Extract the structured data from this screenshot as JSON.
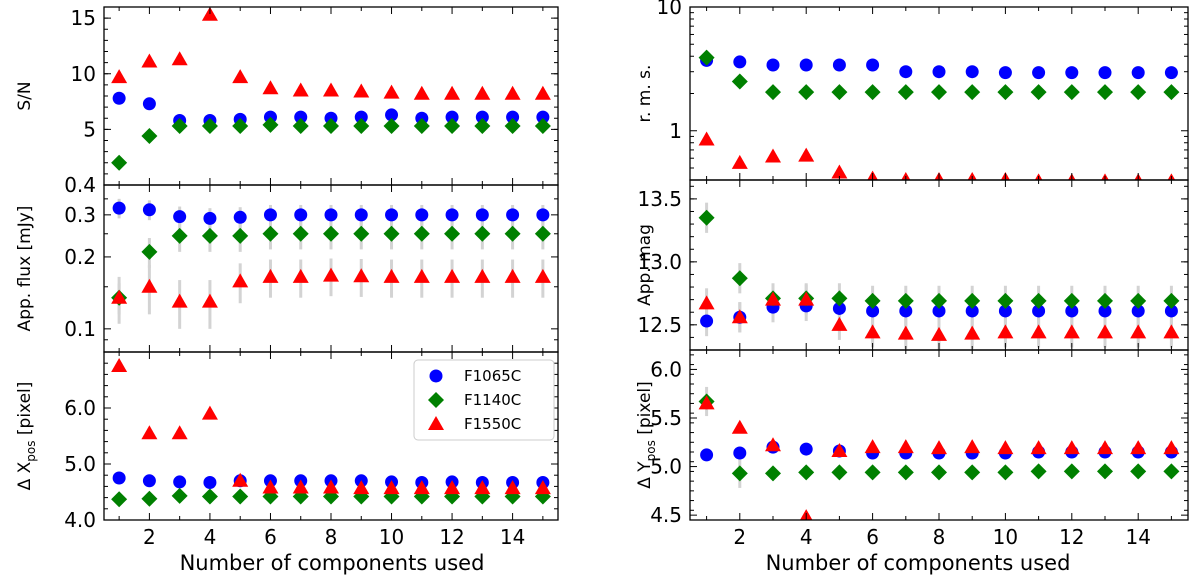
{
  "chart_data": {
    "type": "scatter",
    "xlabel": "Number of components used",
    "x": [
      1,
      2,
      3,
      4,
      5,
      6,
      7,
      8,
      9,
      10,
      11,
      12,
      13,
      14,
      15
    ],
    "x_ticks": [
      "2",
      "4",
      "6",
      "8",
      "10",
      "12",
      "14"
    ],
    "x_tick_values": [
      2,
      4,
      6,
      8,
      10,
      12,
      14
    ],
    "xlim": [
      0.5,
      15.5
    ],
    "legend": {
      "placement": "upper-right of bottom-left panel",
      "entries": [
        "F1065C",
        "F1140C",
        "F1550C"
      ]
    },
    "series_styles": [
      {
        "name": "F1065C",
        "marker": "circle",
        "color": "#0000ff"
      },
      {
        "name": "F1140C",
        "marker": "diamond",
        "color": "#008000"
      },
      {
        "name": "F1550C",
        "marker": "triangle",
        "color": "#ff0000"
      }
    ],
    "panels": [
      {
        "id": "sn",
        "ylabel": "S/N",
        "scale": "linear",
        "ylim": [
          0,
          16
        ],
        "y_ticks": [
          "5",
          "10",
          "15"
        ],
        "y_tick_values": [
          5,
          10,
          15
        ],
        "series": [
          {
            "name": "F1065C",
            "values": [
              7.8,
              7.3,
              5.8,
              5.8,
              5.9,
              6.1,
              6.1,
              6.0,
              6.1,
              6.3,
              6.0,
              6.1,
              6.1,
              6.1,
              6.1
            ]
          },
          {
            "name": "F1140C",
            "values": [
              2.0,
              4.4,
              5.3,
              5.3,
              5.3,
              5.4,
              5.3,
              5.3,
              5.3,
              5.3,
              5.3,
              5.3,
              5.3,
              5.3,
              5.3
            ]
          },
          {
            "name": "F1550C",
            "values": [
              9.7,
              11.1,
              11.3,
              15.3,
              9.7,
              8.7,
              8.5,
              8.5,
              8.4,
              8.3,
              8.2,
              8.2,
              8.2,
              8.2,
              8.2
            ]
          }
        ]
      },
      {
        "id": "flux",
        "ylabel": "App. flux [mJy]",
        "scale": "log",
        "ylim": [
          0.08,
          0.4
        ],
        "y_ticks": [
          "0.1",
          "0.2",
          "0.3",
          "0.4"
        ],
        "y_tick_values": [
          0.1,
          0.2,
          0.3,
          0.4
        ],
        "series": [
          {
            "name": "F1065C",
            "values": [
              0.32,
              0.315,
              0.295,
              0.29,
              0.293,
              0.3,
              0.3,
              0.3,
              0.3,
              0.3,
              0.3,
              0.3,
              0.3,
              0.3,
              0.3
            ],
            "errors": [
              0.03,
              0.03,
              0.03,
              0.03,
              0.03,
              0.03,
              0.03,
              0.03,
              0.03,
              0.03,
              0.03,
              0.03,
              0.03,
              0.03,
              0.03
            ]
          },
          {
            "name": "F1140C",
            "values": [
              0.135,
              0.21,
              0.245,
              0.245,
              0.245,
              0.25,
              0.25,
              0.25,
              0.25,
              0.25,
              0.25,
              0.25,
              0.25,
              0.25,
              0.25
            ],
            "errors": [
              0.02,
              0.03,
              0.035,
              0.035,
              0.035,
              0.035,
              0.035,
              0.035,
              0.035,
              0.035,
              0.035,
              0.035,
              0.035,
              0.035,
              0.035
            ]
          },
          {
            "name": "F1550C",
            "values": [
              0.135,
              0.15,
              0.13,
              0.13,
              0.158,
              0.165,
              0.165,
              0.167,
              0.166,
              0.165,
              0.165,
              0.165,
              0.165,
              0.165,
              0.165
            ],
            "errors": [
              0.03,
              0.035,
              0.03,
              0.03,
              0.03,
              0.03,
              0.03,
              0.03,
              0.03,
              0.03,
              0.03,
              0.03,
              0.03,
              0.03,
              0.03
            ]
          }
        ]
      },
      {
        "id": "dx",
        "ylabel_main": "Δ X",
        "ylabel_sub": "pos",
        "ylabel_tail": " [pixel]",
        "scale": "linear",
        "ylim": [
          4.0,
          7.0
        ],
        "y_ticks": [
          "4.0",
          "5.0",
          "6.0"
        ],
        "y_tick_values": [
          4.0,
          5.0,
          6.0
        ],
        "series": [
          {
            "name": "F1065C",
            "values": [
              4.75,
              4.7,
              4.68,
              4.67,
              4.7,
              4.7,
              4.7,
              4.7,
              4.7,
              4.68,
              4.67,
              4.68,
              4.67,
              4.67,
              4.67
            ]
          },
          {
            "name": "F1140C",
            "values": [
              4.37,
              4.38,
              4.43,
              4.42,
              4.42,
              4.42,
              4.42,
              4.42,
              4.42,
              4.42,
              4.42,
              4.42,
              4.42,
              4.42,
              4.42
            ]
          },
          {
            "name": "F1550C",
            "values": [
              6.75,
              5.55,
              5.55,
              5.9,
              4.7,
              4.58,
              4.58,
              4.58,
              4.57,
              4.57,
              4.57,
              4.57,
              4.57,
              4.57,
              4.57
            ]
          }
        ]
      },
      {
        "id": "rms",
        "ylabel": "r. m. s.",
        "scale": "log",
        "ylim": [
          0.4,
          10
        ],
        "y_ticks": [
          "1",
          "10"
        ],
        "y_tick_values": [
          1,
          10
        ],
        "minor_ticks": [
          0.5,
          0.6,
          0.7,
          0.8,
          0.9,
          2,
          3,
          4,
          5,
          6,
          7,
          8,
          9
        ],
        "series": [
          {
            "name": "F1065C",
            "values": [
              3.7,
              3.6,
              3.4,
              3.4,
              3.4,
              3.4,
              3.0,
              3.0,
              3.0,
              2.95,
              2.95,
              2.95,
              2.95,
              2.95,
              2.95
            ]
          },
          {
            "name": "F1140C",
            "values": [
              3.9,
              2.5,
              2.05,
              2.05,
              2.05,
              2.05,
              2.05,
              2.05,
              2.05,
              2.05,
              2.05,
              2.05,
              2.05,
              2.05,
              2.05
            ]
          },
          {
            "name": "F1550C",
            "values": [
              0.85,
              0.55,
              0.62,
              0.63,
              0.46,
              0.41,
              0.4,
              0.4,
              0.4,
              0.4,
              0.39,
              0.39,
              0.39,
              0.39,
              0.39
            ]
          }
        ]
      },
      {
        "id": "mag",
        "ylabel": "App.  mag",
        "scale": "linear",
        "ylim": [
          12.3,
          13.65
        ],
        "y_ticks": [
          "12.5",
          "13.0",
          "13.5"
        ],
        "y_tick_values": [
          12.5,
          13.0,
          13.5
        ],
        "series": [
          {
            "name": "F1065C",
            "values": [
              12.53,
              12.56,
              12.64,
              12.65,
              12.63,
              12.61,
              12.61,
              12.61,
              12.61,
              12.61,
              12.61,
              12.61,
              12.61,
              12.61,
              12.61
            ],
            "errors": [
              0.12,
              0.12,
              0.12,
              0.12,
              0.12,
              0.12,
              0.12,
              0.12,
              0.12,
              0.12,
              0.12,
              0.12,
              0.12,
              0.12,
              0.12
            ]
          },
          {
            "name": "F1140C",
            "values": [
              13.35,
              12.87,
              12.71,
              12.71,
              12.71,
              12.69,
              12.69,
              12.69,
              12.69,
              12.69,
              12.69,
              12.69,
              12.69,
              12.69,
              12.69
            ],
            "errors": [
              0.12,
              0.12,
              0.12,
              0.12,
              0.12,
              0.12,
              0.12,
              0.12,
              0.12,
              0.12,
              0.12,
              0.12,
              0.12,
              0.12,
              0.12
            ]
          },
          {
            "name": "F1550C",
            "values": [
              12.67,
              12.56,
              12.7,
              12.7,
              12.5,
              12.44,
              12.43,
              12.42,
              12.43,
              12.44,
              12.44,
              12.44,
              12.44,
              12.44,
              12.44
            ],
            "errors": [
              0.12,
              0.12,
              0.12,
              0.12,
              0.12,
              0.12,
              0.12,
              0.12,
              0.12,
              0.12,
              0.12,
              0.12,
              0.12,
              0.12,
              0.12
            ]
          }
        ]
      },
      {
        "id": "dy",
        "ylabel_main": "Δ Y",
        "ylabel_sub": "pos",
        "ylabel_tail": " [pixel]",
        "scale": "linear",
        "ylim": [
          4.45,
          6.2
        ],
        "y_ticks": [
          "4.5",
          "5.0",
          "5.5",
          "6.0"
        ],
        "y_tick_values": [
          4.5,
          5.0,
          5.5,
          6.0
        ],
        "series": [
          {
            "name": "F1065C",
            "values": [
              5.12,
              5.14,
              5.2,
              5.18,
              5.16,
              5.14,
              5.14,
              5.14,
              5.14,
              5.14,
              5.15,
              5.15,
              5.15,
              5.15,
              5.15
            ],
            "errors": [
              0.05,
              0.05,
              0.05,
              0.05,
              0.05,
              0.05,
              0.05,
              0.05,
              0.05,
              0.05,
              0.05,
              0.05,
              0.05,
              0.05,
              0.05
            ]
          },
          {
            "name": "F1140C",
            "values": [
              5.67,
              4.93,
              4.93,
              4.94,
              4.94,
              4.94,
              4.94,
              4.94,
              4.94,
              4.94,
              4.95,
              4.95,
              4.95,
              4.95,
              4.95
            ],
            "errors": [
              0.15,
              0.15,
              0.05,
              0.05,
              0.05,
              0.05,
              0.05,
              0.05,
              0.05,
              0.05,
              0.05,
              0.05,
              0.05,
              0.05,
              0.05
            ]
          },
          {
            "name": "F1550C",
            "values": [
              5.65,
              5.4,
              5.22,
              4.48,
              5.16,
              5.2,
              5.2,
              5.19,
              5.2,
              5.19,
              5.19,
              5.19,
              5.19,
              5.19,
              5.19
            ],
            "errors": [
              0.05,
              0.05,
              0.05,
              0.05,
              0.05,
              0.05,
              0.05,
              0.05,
              0.05,
              0.05,
              0.05,
              0.05,
              0.05,
              0.05,
              0.05
            ]
          }
        ]
      }
    ]
  }
}
